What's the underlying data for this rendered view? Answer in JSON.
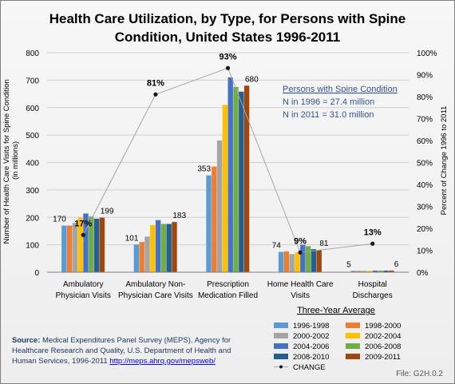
{
  "chart_data": {
    "type": "bar",
    "title_line1": "Health Care Utilization, by Type, for Persons with Spine",
    "title_line2": "Condition, United States 1996-2011",
    "ylabel": "Number of Health Care Visits for Spine Condition (in millions)",
    "y2label": "Percent of Change 1996 to 2011",
    "ylim": [
      0,
      800
    ],
    "y_ticks": [
      "0",
      "100",
      "200",
      "300",
      "400",
      "500",
      "600",
      "700",
      "800"
    ],
    "y2lim": [
      0,
      100
    ],
    "y2_ticks": [
      "0%",
      "10%",
      "20%",
      "30%",
      "40%",
      "50%",
      "60%",
      "70%",
      "80%",
      "90%",
      "100%"
    ],
    "categories": [
      [
        "Ambulatory",
        "Physician Visits"
      ],
      [
        "Ambulatory Non-",
        "Physician Care Visits"
      ],
      [
        "Prescription",
        "Medication Filled"
      ],
      [
        "Home Health Care",
        "Visits"
      ],
      [
        "Hospital",
        "Discharges"
      ]
    ],
    "series": [
      {
        "name": "1996-1998",
        "color": "#5b9bd5",
        "values": [
          170,
          101,
          353,
          74,
          5
        ]
      },
      {
        "name": "1998-2000",
        "color": "#ed7d31",
        "values": [
          170,
          110,
          385,
          76,
          5
        ]
      },
      {
        "name": "2000-2002",
        "color": "#a5a5a5",
        "values": [
          180,
          130,
          480,
          66,
          5
        ]
      },
      {
        "name": "2002-2004",
        "color": "#ffc000",
        "values": [
          199,
          172,
          610,
          72,
          5
        ]
      },
      {
        "name": "2004-2006",
        "color": "#4472c4",
        "values": [
          214,
          190,
          710,
          100,
          6
        ]
      },
      {
        "name": "2006-2008",
        "color": "#70ad47",
        "values": [
          203,
          176,
          675,
          95,
          6
        ]
      },
      {
        "name": "2008-2010",
        "color": "#255e91",
        "values": [
          195,
          176,
          658,
          84,
          6
        ]
      },
      {
        "name": "2009-2011",
        "color": "#9e480e",
        "values": [
          199,
          183,
          680,
          81,
          6
        ]
      }
    ],
    "first_labels": [
      "170",
      "101",
      "353",
      "74",
      "5"
    ],
    "last_labels": [
      "199",
      "183",
      "680",
      "81",
      "6"
    ],
    "change_series": {
      "name": "CHANGE",
      "color": "#a6a6a6",
      "values": [
        17,
        81,
        93,
        9,
        13
      ]
    },
    "change_labels": [
      "17%",
      "81%",
      "93%",
      "9%",
      "13%"
    ],
    "legend_title": "Three-Year Average",
    "legend_position": "bottom-right",
    "grid": true
  },
  "annotation": {
    "heading": "Persons with Spine Condition",
    "line1": "N in 1996 = 27.4 million",
    "line2": "N in 2011 = 31.0 million"
  },
  "source": {
    "label": "Source:",
    "line1": " Medical Expenditures Panel Survey (MEPS), Agency for",
    "line2": "Healthcare Research and Quality, U.S. Department of Health and",
    "line3": "Human Services, 1996-2011 ",
    "link": "http://meps.ahrq.gov/mepsweb/"
  },
  "file_id": "File: G2H.0.2"
}
